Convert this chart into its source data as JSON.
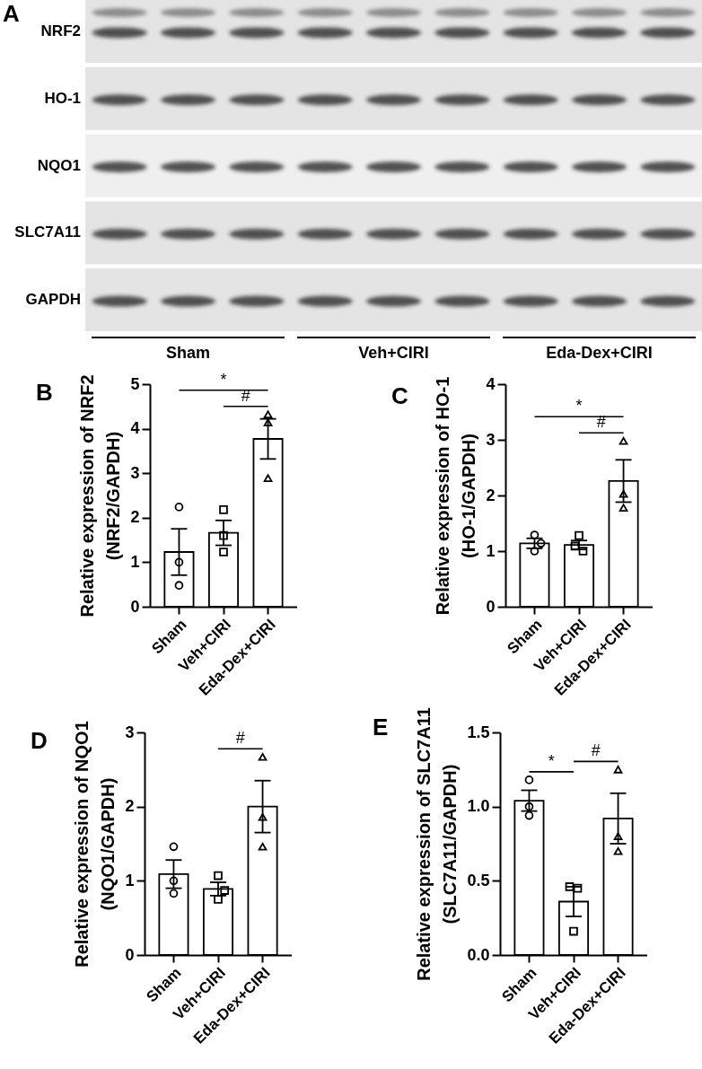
{
  "chart_data": [
    {
      "type": "other",
      "title": "A",
      "y_categories": [
        "NRF2",
        "HO-1",
        "NQO1",
        "SLC7A11",
        "GAPDH"
      ],
      "categories": [
        "Sham",
        "Veh+CIRI",
        "Eda-Dex+CIRI"
      ]
    },
    {
      "type": "bar",
      "title": "B",
      "ylabel": "Relative expression of NRF2\n(NRF2/GAPDH)",
      "categories": [
        "Sham",
        "Veh+CIRI",
        "Eda-Dex+CIRI"
      ],
      "ylim": [
        0,
        5
      ],
      "yticks": [
        0,
        1,
        2,
        3,
        4,
        5
      ],
      "series": [
        {
          "type": "bar",
          "color": "#ffffff",
          "values": [
            1.23,
            1.66,
            3.77
          ],
          "errors": [
            0.52,
            0.28,
            0.45
          ]
        },
        {
          "type": "scatter",
          "color": "#000000",
          "marker": "circle",
          "x": [
            "Sham",
            "Sham",
            "Sham"
          ],
          "values": [
            2.24,
            1.0,
            0.48
          ]
        },
        {
          "type": "scatter",
          "color": "#000000",
          "marker": "square",
          "x": [
            "Veh+CIRI",
            "Veh+CIRI",
            "Veh+CIRI"
          ],
          "values": [
            2.18,
            1.6,
            1.23
          ]
        },
        {
          "type": "scatter",
          "color": "#000000",
          "marker": "triangle",
          "x": [
            "Eda-Dex+CIRI",
            "Eda-Dex+CIRI",
            "Eda-Dex+CIRI"
          ],
          "values": [
            4.32,
            4.14,
            2.89
          ]
        }
      ],
      "annotations": [
        "*",
        "#"
      ]
    },
    {
      "type": "bar",
      "title": "C",
      "ylabel": "Relative expression of HO-1\n(HO-1/GAPDH)",
      "categories": [
        "Sham",
        "Veh+CIRI",
        "Eda-Dex+CIRI"
      ],
      "ylim": [
        0,
        4
      ],
      "yticks": [
        0,
        1,
        2,
        3,
        4
      ],
      "series": [
        {
          "type": "bar",
          "color": "#ffffff",
          "values": [
            1.14,
            1.11,
            2.26
          ],
          "errors": [
            0.09,
            0.08,
            0.38
          ]
        },
        {
          "type": "scatter",
          "color": "#000000",
          "marker": "circle",
          "x": [
            "Sham",
            "Sham",
            "Sham"
          ],
          "values": [
            1.29,
            1.14,
            1.0
          ]
        },
        {
          "type": "scatter",
          "color": "#000000",
          "marker": "square",
          "x": [
            "Veh+CIRI",
            "Veh+CIRI",
            "Veh+CIRI"
          ],
          "values": [
            1.28,
            1.09,
            1.0
          ]
        },
        {
          "type": "scatter",
          "color": "#000000",
          "marker": "triangle",
          "x": [
            "Eda-Dex+CIRI",
            "Eda-Dex+CIRI",
            "Eda-Dex+CIRI"
          ],
          "values": [
            2.98,
            2.03,
            1.78
          ]
        }
      ],
      "annotations": [
        "*",
        "#"
      ]
    },
    {
      "type": "bar",
      "title": "D",
      "ylabel": "Relative expression of NQO1\n(NQO1/GAPDH)",
      "categories": [
        "Sham",
        "Veh+CIRI",
        "Eda-Dex+CIRI"
      ],
      "ylim": [
        0,
        3
      ],
      "yticks": [
        0,
        1,
        2,
        3
      ],
      "series": [
        {
          "type": "bar",
          "color": "#ffffff",
          "values": [
            1.09,
            0.89,
            2.0
          ],
          "errors": [
            0.19,
            0.09,
            0.35
          ]
        },
        {
          "type": "scatter",
          "color": "#000000",
          "marker": "circle",
          "x": [
            "Sham",
            "Sham",
            "Sham"
          ],
          "values": [
            1.46,
            1.0,
            0.83
          ]
        },
        {
          "type": "scatter",
          "color": "#000000",
          "marker": "square",
          "x": [
            "Veh+CIRI",
            "Veh+CIRI",
            "Veh+CIRI"
          ],
          "values": [
            1.07,
            0.87,
            0.75
          ]
        },
        {
          "type": "scatter",
          "color": "#000000",
          "marker": "triangle",
          "x": [
            "Eda-Dex+CIRI",
            "Eda-Dex+CIRI",
            "Eda-Dex+CIRI"
          ],
          "values": [
            2.67,
            1.86,
            1.46
          ]
        }
      ],
      "annotations": [
        "#"
      ]
    },
    {
      "type": "bar",
      "title": "E",
      "ylabel": "Relative expression of SLC7A11\n(SLC7A11/GAPDH)",
      "categories": [
        "Sham",
        "Veh+CIRI",
        "Eda-Dex+CIRI"
      ],
      "ylim": [
        0,
        1.5
      ],
      "yticks": [
        {
          "value": 0,
          "label": "0.0"
        },
        0.5,
        {
          "value": 1,
          "label": "1.0"
        },
        1.5
      ],
      "series": [
        {
          "type": "bar",
          "color": "#ffffff",
          "values": [
            1.04,
            0.36,
            0.92
          ],
          "errors": [
            0.07,
            0.1,
            0.17
          ]
        },
        {
          "type": "scatter",
          "color": "#000000",
          "marker": "circle",
          "x": [
            "Sham",
            "Sham",
            "Sham"
          ],
          "values": [
            1.18,
            1.0,
            0.94
          ]
        },
        {
          "type": "scatter",
          "color": "#000000",
          "marker": "square",
          "x": [
            "Veh+CIRI",
            "Veh+CIRI",
            "Veh+CIRI"
          ],
          "values": [
            0.46,
            0.45,
            0.16
          ]
        },
        {
          "type": "scatter",
          "color": "#000000",
          "marker": "triangle",
          "x": [
            "Eda-Dex+CIRI",
            "Eda-Dex+CIRI",
            "Eda-Dex+CIRI"
          ],
          "values": [
            1.25,
            0.8,
            0.7
          ]
        }
      ],
      "annotations": [
        "*",
        "#"
      ]
    }
  ]
}
